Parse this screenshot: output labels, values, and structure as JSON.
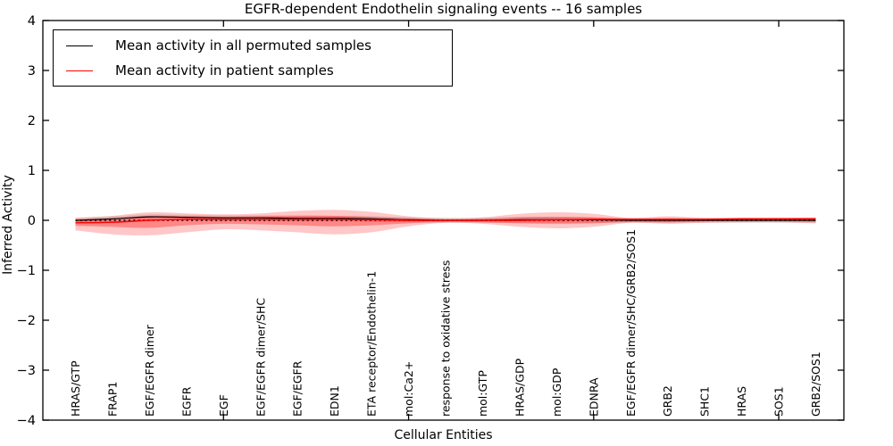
{
  "figure": {
    "title": "EGFR-dependent Endothelin signaling events -- 16 samples",
    "xlabel": "Cellular Entities",
    "ylabel": "Inferred Activity"
  },
  "legend": {
    "entries": [
      {
        "label": "Mean activity in all permuted samples",
        "color": "#000000"
      },
      {
        "label": "Mean activity in patient samples",
        "color": "#ff0000"
      }
    ],
    "position": "upper left"
  },
  "chart_data": {
    "type": "line",
    "title": "EGFR-dependent Endothelin signaling events -- 16 samples",
    "xlabel": "Cellular Entities",
    "ylabel": "Inferred Activity",
    "ylim": [
      -4,
      4
    ],
    "yticks": [
      -4,
      -3,
      -2,
      -1,
      0,
      1,
      2,
      3,
      4
    ],
    "grid": false,
    "major_xtick_category_indices": [
      4,
      9,
      14,
      19
    ],
    "categories": [
      "HRAS/GTP",
      "FRAP1",
      "EGF/EGFR dimer",
      "EGFR",
      "EGF",
      "EGF/EGFR dimer/SHC",
      "EGF/EGFR",
      "EDN1",
      "ETA receptor/Endothelin-1",
      "mol:Ca2+",
      "response to oxidative stress",
      "mol:GTP",
      "HRAS/GDP",
      "mol:GDP",
      "EDNRA",
      "EGF/EGFR dimer/SHC/GRB2/SOS1",
      "GRB2",
      "SHC1",
      "HRAS",
      "SOS1",
      "GRB2/SOS1"
    ],
    "series": [
      {
        "name": "Mean activity in all permuted samples",
        "color": "#000000",
        "style": "solid",
        "values": [
          0.0,
          0.03,
          0.07,
          0.06,
          0.05,
          0.05,
          0.04,
          0.04,
          0.03,
          0.01,
          0.0,
          0.0,
          0.01,
          0.01,
          0.01,
          0.0,
          0.0,
          0.0,
          0.0,
          0.0,
          0.0
        ]
      },
      {
        "name": "Mean activity in patient samples",
        "color": "#ff0000",
        "style": "solid",
        "values": [
          -0.05,
          -0.04,
          0.0,
          0.02,
          0.02,
          0.02,
          0.02,
          0.02,
          0.01,
          0.0,
          0.0,
          0.0,
          0.0,
          0.01,
          0.02,
          0.02,
          0.02,
          0.02,
          0.03,
          0.03,
          0.03
        ]
      },
      {
        "name": "zero reference",
        "color": "#000000",
        "style": "dotted",
        "values": [
          0,
          0,
          0,
          0,
          0,
          0,
          0,
          0,
          0,
          0,
          0,
          0,
          0,
          0,
          0,
          0,
          0,
          0,
          0,
          0,
          0
        ]
      }
    ],
    "bands": [
      {
        "name": "permuted samples spread",
        "color": "#000000",
        "opacity": 0.12,
        "upper": [
          0.05,
          0.08,
          0.12,
          0.11,
          0.1,
          0.1,
          0.1,
          0.09,
          0.08,
          0.06,
          0.05,
          0.05,
          0.07,
          0.07,
          0.06,
          0.05,
          0.05,
          0.05,
          0.05,
          0.05,
          0.05
        ],
        "lower": [
          -0.05,
          -0.03,
          0.01,
          0.0,
          -0.01,
          -0.01,
          -0.02,
          -0.02,
          -0.03,
          -0.04,
          -0.05,
          -0.05,
          -0.05,
          -0.05,
          -0.05,
          -0.05,
          -0.05,
          -0.05,
          -0.05,
          -0.05,
          -0.05
        ]
      },
      {
        "name": "patient samples outer spread",
        "color": "#ff0000",
        "opacity": 0.22,
        "upper": [
          0.05,
          0.09,
          0.16,
          0.14,
          0.12,
          0.14,
          0.19,
          0.21,
          0.17,
          0.08,
          0.04,
          0.06,
          0.13,
          0.16,
          0.13,
          0.05,
          0.08,
          0.05,
          0.05,
          0.05,
          0.06
        ],
        "lower": [
          -0.2,
          -0.28,
          -0.3,
          -0.24,
          -0.18,
          -0.2,
          -0.24,
          -0.28,
          -0.24,
          -0.12,
          -0.05,
          -0.07,
          -0.13,
          -0.16,
          -0.13,
          -0.05,
          -0.07,
          -0.05,
          -0.04,
          -0.04,
          -0.06
        ]
      },
      {
        "name": "patient samples inner spread",
        "color": "#ff0000",
        "opacity": 0.32,
        "upper": [
          0.0,
          0.03,
          0.09,
          0.08,
          0.07,
          0.08,
          0.09,
          0.09,
          0.07,
          0.04,
          0.02,
          0.03,
          0.06,
          0.07,
          0.06,
          0.03,
          0.04,
          0.03,
          0.04,
          0.04,
          0.04
        ],
        "lower": [
          -0.11,
          -0.13,
          -0.15,
          -0.1,
          -0.07,
          -0.08,
          -0.1,
          -0.12,
          -0.1,
          -0.06,
          -0.03,
          -0.04,
          -0.06,
          -0.07,
          -0.06,
          -0.03,
          -0.04,
          -0.02,
          -0.02,
          -0.02,
          -0.03
        ]
      }
    ]
  }
}
